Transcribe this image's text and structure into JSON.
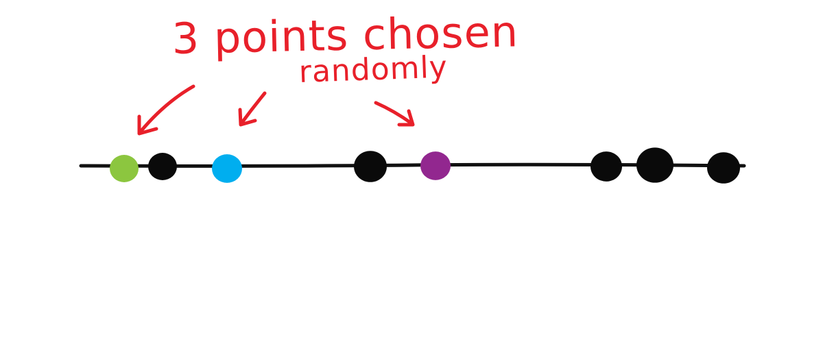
{
  "annotation": {
    "line1": "3 points chosen",
    "line2": "randomly"
  },
  "colors": {
    "annotation": "#e8202a",
    "line": "#111111",
    "point_default": "#0a0a0a"
  },
  "points": [
    {
      "name": "point-green",
      "color": "#8cc63f",
      "chosen": true
    },
    {
      "name": "point-black",
      "color": "#0a0a0a",
      "chosen": false
    },
    {
      "name": "point-blue",
      "color": "#00aeef",
      "chosen": true
    },
    {
      "name": "point-black",
      "color": "#0a0a0a",
      "chosen": false
    },
    {
      "name": "point-purple",
      "color": "#92278f",
      "chosen": true
    },
    {
      "name": "point-black",
      "color": "#0a0a0a",
      "chosen": false
    },
    {
      "name": "point-black",
      "color": "#0a0a0a",
      "chosen": false
    },
    {
      "name": "point-black",
      "color": "#0a0a0a",
      "chosen": false
    }
  ]
}
